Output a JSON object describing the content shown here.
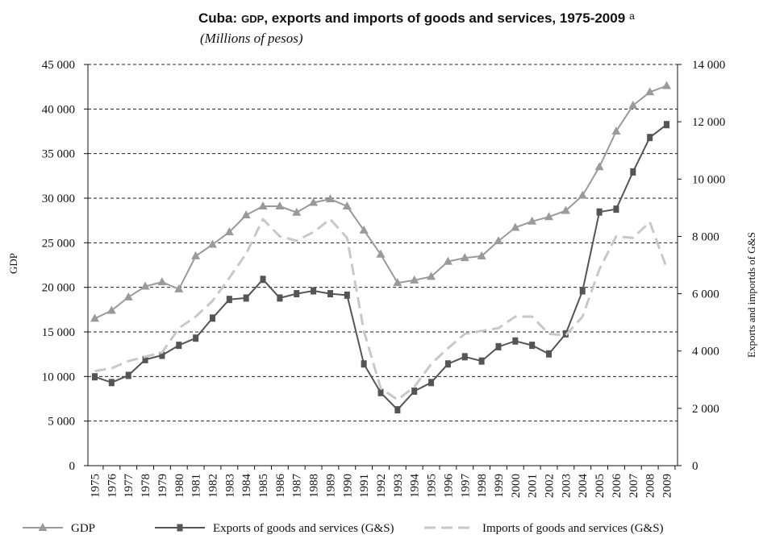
{
  "chart_data": {
    "type": "line",
    "title_prefix": "Cuba:",
    "title_small_caps": "GDP",
    "title_rest": ", exports and imports of goods and services, 1975-2009",
    "title_superscript": "a",
    "subtitle": "(Millions of pesos)",
    "ylabel_left": "GDP",
    "ylabel_right": "Exports and importds of G&S",
    "ylim_left": [
      0,
      45000
    ],
    "ylim_right": [
      0,
      14000
    ],
    "yticks_left": [
      "0",
      "5 000",
      "10 000",
      "15 000",
      "20 000",
      "25 000",
      "30 000",
      "35 000",
      "40 000",
      "45 000"
    ],
    "yticks_right": [
      "0",
      "2 000",
      "4 000",
      "6 000",
      "8 000",
      "10 000",
      "12 000",
      "14 000"
    ],
    "grid": "horizontal dashed",
    "legend_position": "bottom",
    "categories": [
      "1975",
      "1976",
      "1977",
      "1978",
      "1979",
      "1980",
      "1981",
      "1982",
      "1983",
      "1984",
      "1985",
      "1986",
      "1987",
      "1988",
      "1989",
      "1990",
      "1991",
      "1992",
      "1993",
      "1994",
      "1995",
      "1996",
      "1997",
      "1998",
      "1999",
      "2000",
      "2001",
      "2002",
      "2003",
      "2004",
      "2005",
      "2006",
      "2007",
      "2008",
      "2009"
    ],
    "series": [
      {
        "name": "GDP",
        "axis": "left",
        "style": "solid-triangle",
        "color": "#9a9a9a",
        "values": [
          16500,
          17400,
          18900,
          20100,
          20600,
          19800,
          23500,
          24800,
          26200,
          28100,
          29100,
          29100,
          28400,
          29500,
          29900,
          29100,
          26400,
          23700,
          20500,
          20800,
          21200,
          22900,
          23300,
          23500,
          25200,
          26700,
          27400,
          27900,
          28600,
          30300,
          33500,
          37500,
          40400,
          41900,
          42600
        ]
      },
      {
        "name": "Exports of goods and services (G&S)",
        "axis": "right",
        "style": "solid-square",
        "color": "#555555",
        "values": [
          3100,
          2900,
          3150,
          3700,
          3850,
          4200,
          4450,
          5150,
          5800,
          5850,
          6500,
          5850,
          6000,
          6100,
          6000,
          5950,
          3550,
          2550,
          1950,
          2600,
          2900,
          3550,
          3800,
          3650,
          4150,
          4350,
          4200,
          3900,
          4600,
          6100,
          8850,
          8950,
          10250,
          11450,
          11900
        ]
      },
      {
        "name": "Imports of goods and services (G&S)",
        "axis": "right",
        "style": "dashed",
        "color": "#c8c8c8",
        "values": [
          3300,
          3400,
          3650,
          3800,
          3950,
          4800,
          5200,
          5750,
          6550,
          7400,
          8600,
          8000,
          7850,
          8150,
          8600,
          7950,
          4700,
          2700,
          2300,
          2750,
          3550,
          4100,
          4600,
          4700,
          4800,
          5200,
          5200,
          4600,
          4550,
          5200,
          6850,
          8000,
          7950,
          8500,
          6900
        ]
      }
    ]
  }
}
